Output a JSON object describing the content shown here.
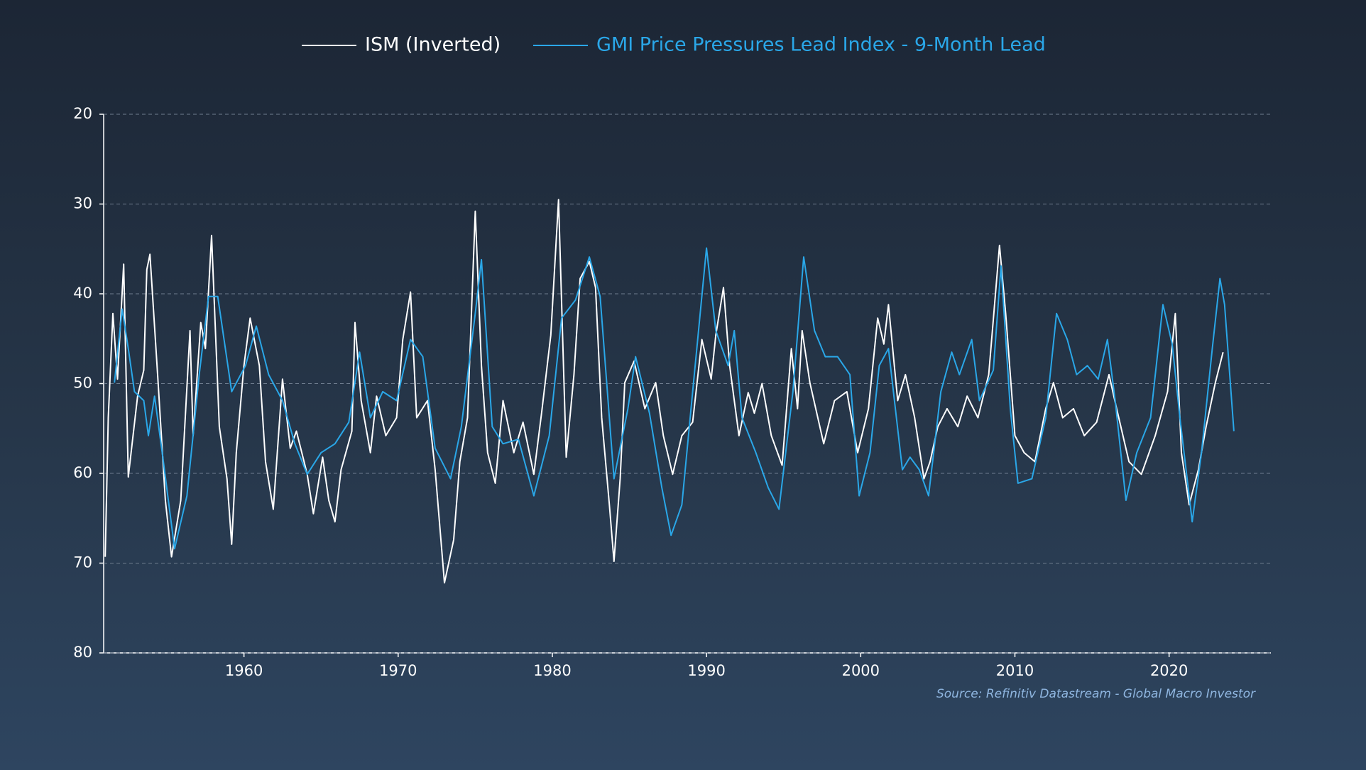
{
  "chart_data": {
    "type": "line",
    "source": "Source: Refinitiv Datastream - Global Macro Investor",
    "xlim": [
      1950.9,
      2026.6
    ],
    "xticks": [
      1960,
      1970,
      1980,
      1990,
      2000,
      2010,
      2020
    ],
    "ylim": [
      20,
      80
    ],
    "yticks": [
      20,
      30,
      40,
      50,
      60,
      70,
      80
    ],
    "y_inverted": true,
    "grid": true,
    "legend": "top",
    "series": [
      {
        "name": "ISM (Inverted)",
        "color": "#ffffff",
        "x": [
          1951.0,
          1951.2,
          1951.5,
          1951.8,
          1952.2,
          1952.5,
          1953.1,
          1953.5,
          1953.7,
          1953.9,
          1954.4,
          1954.9,
          1955.3,
          1955.9,
          1956.5,
          1956.7,
          1957.2,
          1957.5,
          1957.9,
          1958.4,
          1958.9,
          1959.2,
          1959.5,
          1960.0,
          1960.4,
          1961.0,
          1961.4,
          1961.9,
          1962.5,
          1963.0,
          1963.4,
          1964.1,
          1964.5,
          1965.1,
          1965.5,
          1965.9,
          1966.3,
          1967.0,
          1967.2,
          1967.6,
          1968.2,
          1968.6,
          1969.2,
          1969.9,
          1970.3,
          1970.8,
          1971.2,
          1971.9,
          1972.4,
          1973.0,
          1973.6,
          1974.0,
          1974.5,
          1975.0,
          1975.4,
          1975.8,
          1976.3,
          1976.8,
          1977.5,
          1978.1,
          1978.8,
          1979.3,
          1979.9,
          1980.4,
          1980.9,
          1981.4,
          1981.8,
          1982.4,
          1982.8,
          1983.2,
          1983.7,
          1984.0,
          1984.4,
          1984.7,
          1985.3,
          1986.0,
          1986.7,
          1987.2,
          1987.8,
          1988.4,
          1989.1,
          1989.7,
          1990.3,
          1990.6,
          1991.1,
          1991.5,
          1992.1,
          1992.7,
          1993.1,
          1993.6,
          1994.2,
          1994.9,
          1995.5,
          1995.9,
          1996.2,
          1996.7,
          1997.6,
          1998.3,
          1999.1,
          1999.8,
          2000.5,
          2001.1,
          2001.5,
          2001.8,
          2002.4,
          2002.9,
          2003.5,
          2004.1,
          2004.5,
          2005.0,
          2005.6,
          2006.3,
          2006.9,
          2007.6,
          2008.3,
          2009.0,
          2009.4,
          2010.0,
          2010.6,
          2011.3,
          2012.0,
          2012.5,
          2013.1,
          2013.8,
          2014.5,
          2015.3,
          2016.1,
          2016.6,
          2017.4,
          2018.2,
          2019.1,
          2019.9,
          2020.4,
          2020.8,
          2021.3,
          2021.9,
          2022.4,
          2023.0,
          2023.5
        ],
        "values": [
          69.3,
          53.8,
          42.2,
          49.5,
          36.7,
          60.4,
          51.4,
          48.5,
          37.3,
          35.6,
          49.0,
          63.0,
          69.3,
          63.0,
          44.1,
          55.8,
          43.2,
          46.1,
          33.5,
          54.8,
          60.6,
          67.9,
          57.7,
          48.0,
          42.7,
          48.0,
          58.7,
          64.0,
          49.5,
          57.2,
          55.3,
          60.1,
          64.5,
          58.2,
          63.0,
          65.4,
          59.6,
          55.3,
          43.2,
          51.9,
          57.7,
          51.4,
          55.8,
          53.8,
          45.1,
          39.8,
          53.8,
          51.9,
          59.6,
          72.2,
          67.4,
          58.7,
          53.8,
          30.8,
          48.0,
          57.7,
          61.1,
          51.9,
          57.7,
          54.3,
          60.1,
          53.3,
          44.6,
          29.5,
          58.2,
          49.0,
          38.3,
          36.4,
          39.3,
          53.8,
          63.5,
          69.8,
          60.6,
          49.9,
          47.5,
          52.8,
          49.9,
          55.8,
          60.1,
          55.8,
          54.3,
          45.1,
          49.5,
          44.6,
          39.3,
          48.0,
          55.8,
          51.0,
          53.3,
          50.0,
          55.8,
          59.1,
          46.1,
          52.8,
          44.1,
          49.9,
          56.7,
          51.9,
          50.9,
          57.7,
          52.8,
          42.7,
          45.6,
          41.2,
          51.9,
          49.0,
          53.8,
          60.6,
          58.7,
          54.8,
          52.8,
          54.8,
          51.4,
          53.8,
          49.0,
          34.6,
          42.2,
          55.8,
          57.7,
          58.7,
          52.8,
          49.9,
          53.8,
          52.8,
          55.8,
          54.3,
          49.0,
          52.8,
          58.7,
          60.1,
          55.8,
          50.9,
          42.2,
          57.7,
          63.5,
          59.6,
          54.8,
          49.9,
          46.5
        ]
      },
      {
        "name": "GMI Price Pressures Lead Index - 9-Month Lead",
        "color": "#2aa7e8",
        "x": [
          1951.6,
          1952.1,
          1952.5,
          1952.9,
          1953.5,
          1953.8,
          1954.2,
          1954.7,
          1955.5,
          1956.3,
          1957.1,
          1957.7,
          1958.3,
          1959.2,
          1960.1,
          1960.8,
          1961.6,
          1962.5,
          1963.3,
          1964.1,
          1965.0,
          1965.9,
          1966.8,
          1967.5,
          1968.2,
          1969.0,
          1969.9,
          1970.8,
          1971.6,
          1972.4,
          1973.4,
          1974.1,
          1975.0,
          1975.4,
          1976.1,
          1976.8,
          1977.8,
          1978.8,
          1979.8,
          1980.6,
          1981.5,
          1982.4,
          1983.1,
          1984.0,
          1984.9,
          1985.4,
          1986.3,
          1987.1,
          1987.7,
          1988.4,
          1989.1,
          1990.0,
          1990.6,
          1991.4,
          1991.8,
          1992.3,
          1993.2,
          1994.0,
          1994.7,
          1995.6,
          1996.3,
          1997.0,
          1997.7,
          1998.5,
          1999.3,
          1999.9,
          2000.6,
          2001.2,
          2001.8,
          2002.7,
          2003.2,
          2003.8,
          2004.4,
          2005.2,
          2005.9,
          2006.4,
          2007.2,
          2007.7,
          2008.6,
          2009.1,
          2009.7,
          2010.2,
          2011.1,
          2012.0,
          2012.7,
          2013.4,
          2014.0,
          2014.7,
          2015.4,
          2016.0,
          2016.5,
          2017.2,
          2017.9,
          2018.8,
          2019.6,
          2020.2,
          2020.7,
          2021.5,
          2022.1,
          2022.8,
          2023.3,
          2023.6,
          2024.2
        ],
        "values": [
          49.9,
          41.7,
          46.1,
          50.9,
          51.9,
          55.8,
          51.4,
          57.7,
          68.4,
          62.5,
          49.0,
          40.3,
          40.3,
          50.9,
          48.0,
          43.6,
          49.0,
          51.9,
          56.7,
          60.1,
          57.7,
          56.7,
          54.3,
          46.5,
          53.8,
          50.9,
          51.9,
          45.1,
          47.0,
          57.2,
          60.6,
          54.8,
          42.2,
          36.2,
          54.8,
          56.7,
          56.2,
          62.5,
          55.8,
          42.7,
          40.7,
          35.9,
          40.3,
          60.6,
          52.8,
          47.0,
          53.3,
          61.6,
          66.9,
          63.5,
          50.9,
          34.9,
          44.1,
          48.0,
          44.1,
          53.8,
          57.7,
          61.6,
          64.0,
          50.9,
          35.9,
          44.1,
          47.0,
          47.0,
          49.0,
          62.5,
          57.7,
          48.0,
          46.1,
          59.6,
          58.2,
          59.6,
          62.5,
          50.9,
          46.5,
          49.0,
          45.1,
          51.9,
          48.5,
          36.9,
          52.8,
          61.1,
          60.6,
          53.8,
          42.2,
          45.1,
          49.0,
          48.0,
          49.5,
          45.1,
          51.9,
          63.0,
          57.7,
          53.8,
          41.2,
          45.6,
          53.8,
          65.4,
          57.7,
          46.1,
          38.3,
          41.2,
          55.3
        ]
      }
    ]
  }
}
